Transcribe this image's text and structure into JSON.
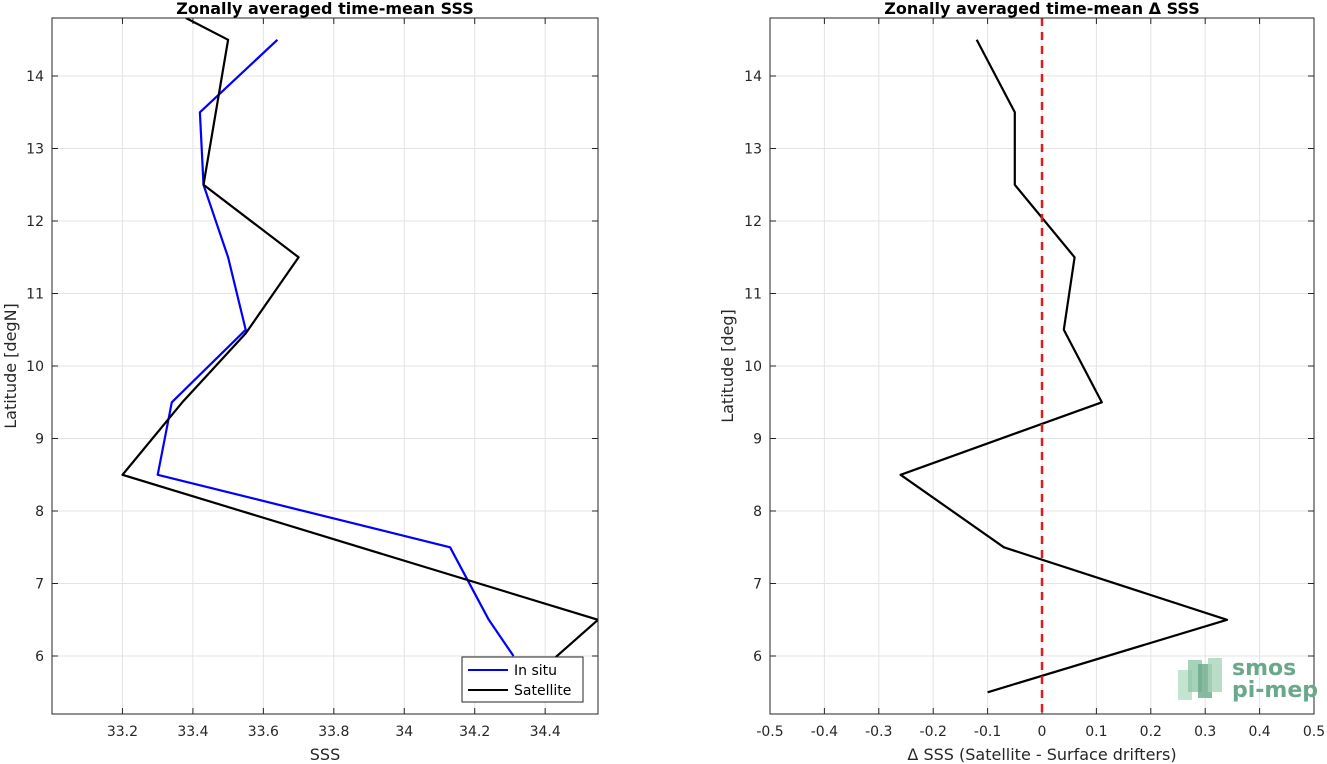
{
  "colors": {
    "in_situ": "#0000ff",
    "satellite": "#000000",
    "zero_line": "#e41a1c",
    "logo": "#6aa88a"
  },
  "logo": {
    "line1": "smos",
    "line2": "pi-mep"
  },
  "chart_data": [
    {
      "type": "line",
      "title": "Zonally averaged time-mean SSS",
      "xlabel": "SSS",
      "ylabel": "Latitude [degN]",
      "xlim": [
        33.0,
        34.55
      ],
      "ylim": [
        5.2,
        14.8
      ],
      "xticks": [
        33.2,
        33.4,
        33.6,
        33.8,
        34,
        34.2,
        34.4
      ],
      "xtick_labels": [
        "33.2",
        "33.4",
        "33.6",
        "33.8",
        "34",
        "34.2",
        "34.4"
      ],
      "yticks": [
        6,
        7,
        8,
        9,
        10,
        11,
        12,
        13,
        14
      ],
      "ytick_labels": [
        "6",
        "7",
        "8",
        "9",
        "10",
        "11",
        "12",
        "13",
        "14"
      ],
      "grid": true,
      "legend": "bottom-right",
      "series": [
        {
          "name": "In situ",
          "color": "#0000ff",
          "points": [
            [
              34.31,
              6.0
            ],
            [
              34.24,
              6.5
            ],
            [
              34.13,
              7.5
            ],
            [
              33.3,
              8.5
            ],
            [
              33.34,
              9.5
            ],
            [
              33.55,
              10.5
            ],
            [
              33.5,
              11.5
            ],
            [
              33.43,
              12.5
            ],
            [
              33.42,
              13.5
            ],
            [
              33.64,
              14.5
            ]
          ]
        },
        {
          "name": "Satellite",
          "color": "#000000",
          "points": [
            [
              34.41,
              5.9
            ],
            [
              34.55,
              6.5
            ],
            [
              33.2,
              8.5
            ],
            [
              33.37,
              9.5
            ],
            [
              33.55,
              10.45
            ],
            [
              33.7,
              11.5
            ],
            [
              33.43,
              12.5
            ],
            [
              33.5,
              14.5
            ],
            [
              33.38,
              14.8
            ]
          ]
        }
      ]
    },
    {
      "type": "line",
      "title": "Zonally averaged time-mean Δ SSS",
      "xlabel": "Δ SSS (Satellite - Surface drifters)",
      "ylabel": "Latitude [deg]",
      "xlim": [
        -0.5,
        0.5
      ],
      "ylim": [
        5.2,
        14.8
      ],
      "xticks": [
        -0.5,
        -0.4,
        -0.3,
        -0.2,
        -0.1,
        0,
        0.1,
        0.2,
        0.3,
        0.4,
        0.5
      ],
      "xtick_labels": [
        "-0.5",
        "-0.4",
        "-0.3",
        "-0.2",
        "-0.1",
        "0",
        "0.1",
        "0.2",
        "0.3",
        "0.4",
        "0.5"
      ],
      "yticks": [
        6,
        7,
        8,
        9,
        10,
        11,
        12,
        13,
        14
      ],
      "ytick_labels": [
        "6",
        "7",
        "8",
        "9",
        "10",
        "11",
        "12",
        "13",
        "14"
      ],
      "grid": true,
      "reference_line_x": 0,
      "series": [
        {
          "color": "#000000",
          "points": [
            [
              -0.1,
              5.5
            ],
            [
              0.34,
              6.5
            ],
            [
              -0.07,
              7.5
            ],
            [
              -0.26,
              8.5
            ],
            [
              0.11,
              9.5
            ],
            [
              0.04,
              10.5
            ],
            [
              0.06,
              11.5
            ],
            [
              -0.05,
              12.5
            ],
            [
              -0.05,
              13.5
            ],
            [
              -0.12,
              14.5
            ]
          ]
        }
      ]
    }
  ]
}
